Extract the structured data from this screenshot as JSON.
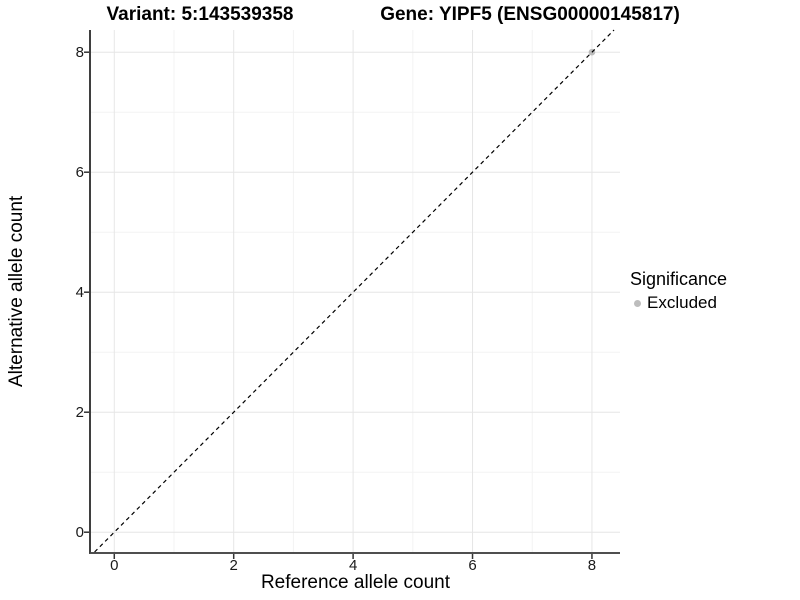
{
  "chart_data": {
    "type": "scatter",
    "title_variant": "Variant: 5:143539358",
    "title_gene": "Gene: YIPF5 (ENSG00000145817)",
    "xlabel": "Reference allele count",
    "ylabel": "Alternative allele count",
    "xlim": [
      -0.39,
      8.47
    ],
    "ylim": [
      -0.33,
      8.37
    ],
    "x_breaks": [
      0,
      2,
      4,
      6,
      8
    ],
    "y_breaks": [
      0,
      2,
      4,
      6,
      8
    ],
    "x_minor_breaks": [
      1,
      3,
      5,
      7
    ],
    "y_minor_breaks": [
      1,
      3,
      5,
      7
    ],
    "grid": true,
    "reference_line": {
      "kind": "abline",
      "slope": 1,
      "intercept": 0,
      "style": "dashed",
      "color": "#000000"
    },
    "points": [
      {
        "x": 8,
        "y": 8,
        "significance": "Excluded",
        "color": "#bdbdbd"
      }
    ],
    "legend": {
      "title": "Significance",
      "position": "right",
      "items": [
        {
          "label": "Excluded",
          "color": "#bdbdbd",
          "marker": "dot"
        }
      ]
    },
    "colors": {
      "background": "#ffffff",
      "major_grid": "#e6e6e6",
      "minor_grid": "#f3f3f3",
      "axis_line": "#3f3f3f",
      "tick_mark": "#333333",
      "tick_label": "#1a1a1a",
      "point_excluded": "#bdbdbd"
    }
  }
}
